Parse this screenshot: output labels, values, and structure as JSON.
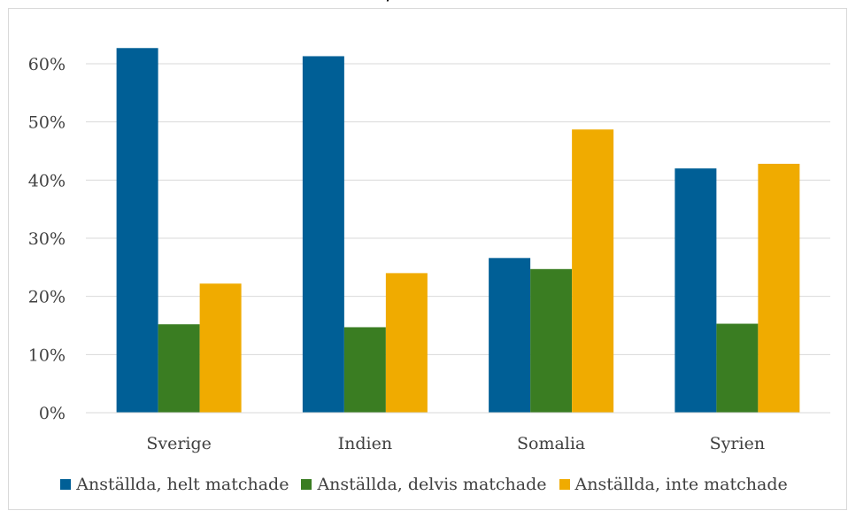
{
  "chart_data": {
    "type": "bar",
    "title": "procent",
    "categories": [
      "Sverige",
      "Indien",
      "Somalia",
      "Syrien"
    ],
    "series": [
      {
        "name": "Anställda, helt matchade",
        "values": [
          62.7,
          61.3,
          26.6,
          42.0
        ],
        "color": "#005f96"
      },
      {
        "name": "Anställda, delvis matchade",
        "values": [
          15.2,
          14.7,
          24.7,
          15.3
        ],
        "color": "#3a7d22"
      },
      {
        "name": "Anställda, inte matchade",
        "values": [
          22.2,
          24.0,
          48.7,
          42.8
        ],
        "color": "#f0ab00"
      }
    ],
    "yticks": [
      "0%",
      "10%",
      "20%",
      "30%",
      "40%",
      "50%",
      "60%"
    ],
    "ylim": [
      0,
      60
    ],
    "ylabel": "",
    "xlabel": "",
    "grid": true,
    "legend_position": "bottom"
  }
}
